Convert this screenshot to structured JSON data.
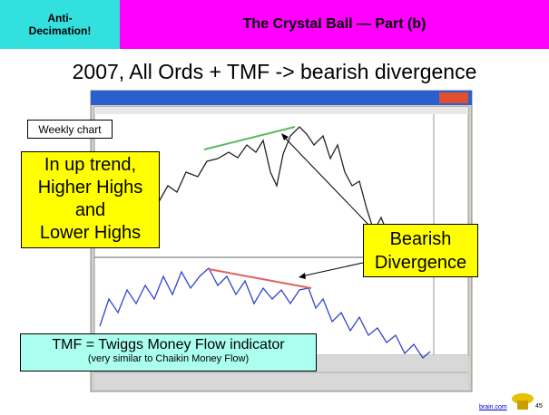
{
  "header": {
    "badge": "Anti-Decimation!",
    "title": "The Crystal Ball — Part (b)"
  },
  "subtitle": "2007, All Ords + TMF -> bearish divergence",
  "callouts": {
    "weekly": "Weekly chart",
    "trend": [
      "In up trend,",
      "Higher Highs",
      "and",
      "Lower Highs"
    ],
    "divergence": [
      "Bearish",
      "Divergence"
    ],
    "tmf": "TMF = Twiggs Money Flow indicator",
    "tmf_note": "(very similar to Chaikin Money Flow)"
  },
  "footer": {
    "link": "brain.com",
    "page": "45"
  }
}
